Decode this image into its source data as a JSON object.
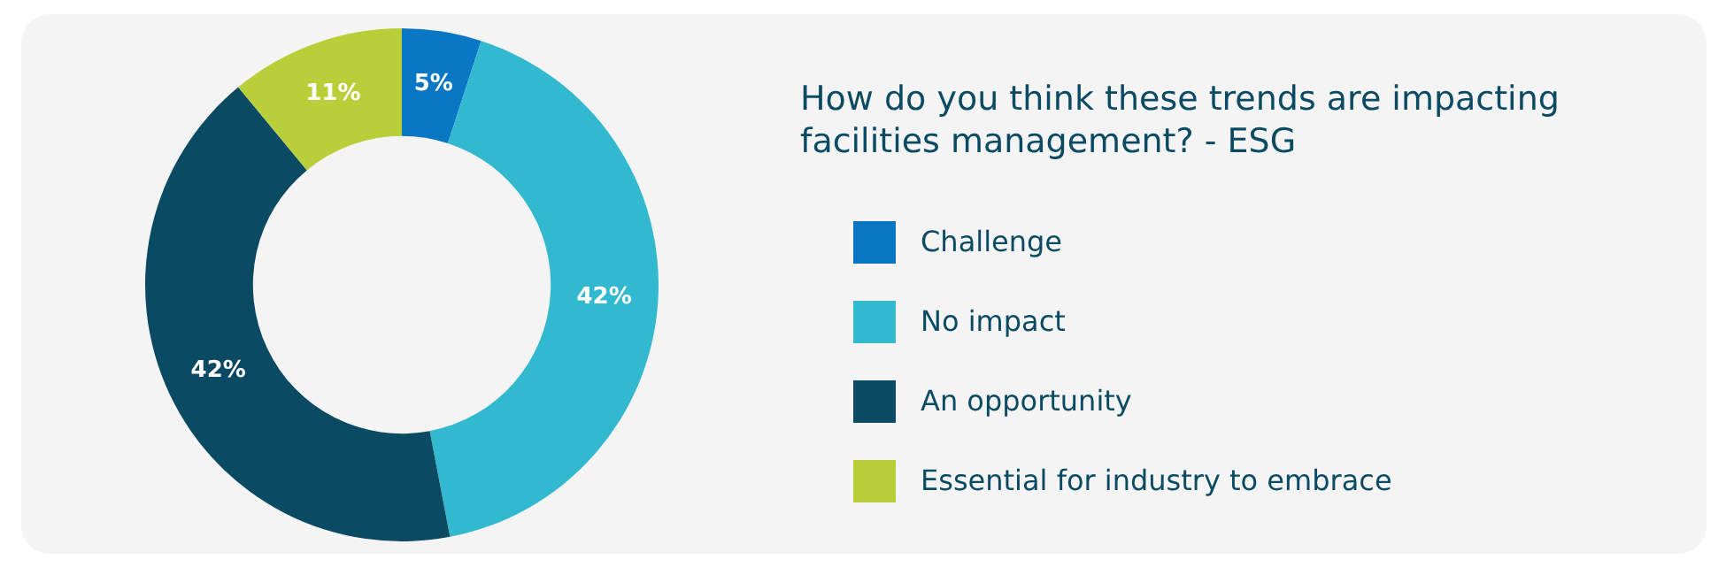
{
  "chart_data": {
    "type": "donut",
    "title": "How do you think these trends are impacting facilities management? - ESG",
    "categories": [
      "Challenge",
      "No impact",
      "An opportunity",
      "Essential for industry to embrace"
    ],
    "values": [
      5,
      42,
      42,
      11
    ],
    "colors": [
      "#0a77c5",
      "#33b9cf",
      "#0a4a63",
      "#b9cf3a"
    ],
    "value_labels": [
      "5%",
      "42%",
      "42%",
      "11%"
    ],
    "legend": "right"
  }
}
